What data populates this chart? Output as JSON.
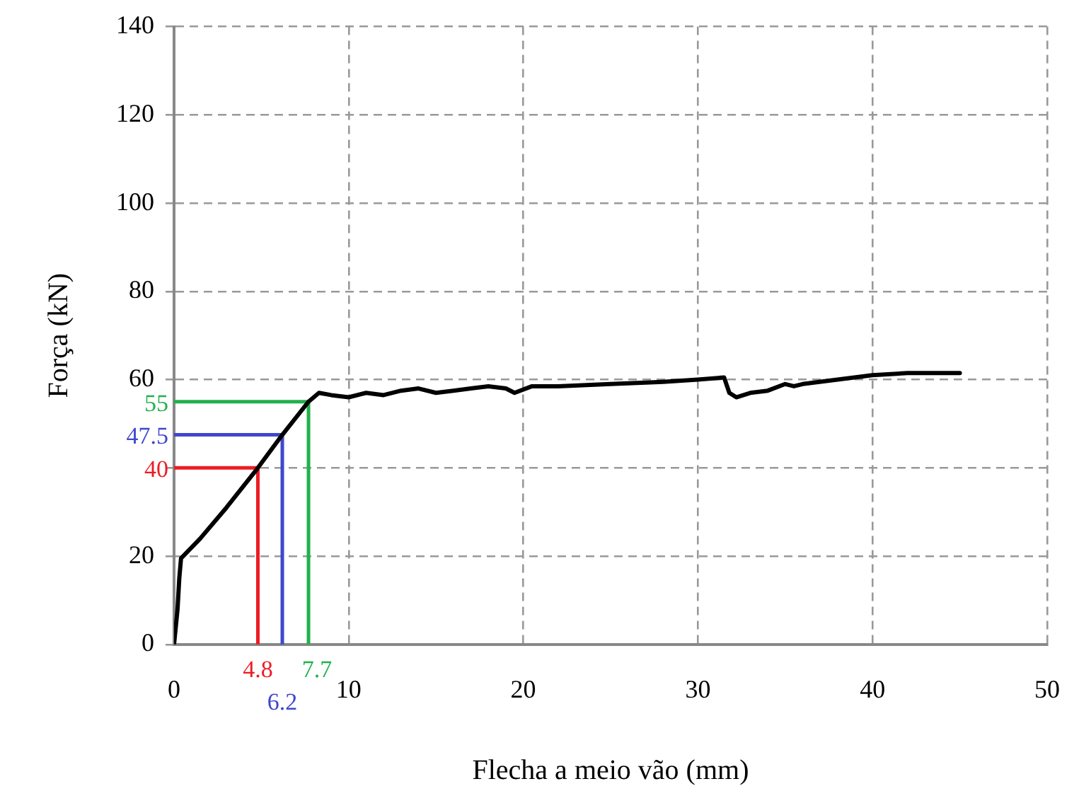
{
  "chart_data": {
    "type": "line",
    "xlabel": "Flecha a meio vão (mm)",
    "ylabel": "Força (kN)",
    "xlim": [
      0,
      50
    ],
    "ylim": [
      0,
      140
    ],
    "xticks": [
      0,
      10,
      20,
      30,
      40,
      50
    ],
    "yticks": [
      0,
      20,
      {
        "value": 40,
        "label": null
      },
      60,
      80,
      100,
      120,
      140
    ],
    "grid": true,
    "legend": false,
    "marker": "none",
    "line_style": "solid",
    "series": [
      {
        "color": "#000000",
        "x": [
          0,
          0.2,
          0.3,
          0.4,
          1.5,
          3,
          4.8,
          6.2,
          7.7,
          8.3,
          9,
          10,
          11,
          12,
          13,
          14,
          15,
          16,
          17,
          18,
          19,
          19.5,
          20.5,
          22,
          25,
          28,
          30,
          31.5,
          31.8,
          32.2,
          33,
          34,
          35,
          35.5,
          36,
          38,
          40,
          42,
          45
        ],
        "values": [
          0,
          8,
          15,
          19.5,
          24,
          31,
          40,
          47.5,
          55,
          57,
          56.5,
          56,
          57,
          56.5,
          57.5,
          58,
          57,
          57.5,
          58,
          58.5,
          58,
          57,
          58.5,
          58.5,
          59,
          59.5,
          60,
          60.5,
          57,
          56,
          57,
          57.5,
          59,
          58.5,
          59,
          60,
          61,
          61.5,
          61.5
        ]
      },
      {
        "color": "#ed1c24",
        "x": [
          0,
          4.8,
          4.8
        ],
        "values": [
          40,
          40,
          0
        ]
      },
      {
        "color": "#3f48cc",
        "x": [
          0,
          6.2,
          6.2
        ],
        "values": [
          47.5,
          47.5,
          0
        ]
      },
      {
        "color": "#22b14c",
        "x": [
          0,
          7.7,
          7.7
        ],
        "values": [
          55,
          55,
          0
        ]
      }
    ],
    "annotations": [
      {
        "text": "40",
        "x": 0,
        "y": 40
      },
      {
        "text": "4.8",
        "x": 4.8,
        "y": 0
      },
      {
        "text": "47.5",
        "x": 0,
        "y": 47.5
      },
      {
        "text": "6.2",
        "x": 6.2,
        "y": 0
      },
      {
        "text": "55",
        "x": 0,
        "y": 55
      },
      {
        "text": "7.7",
        "x": 7.7,
        "y": 0
      }
    ]
  }
}
